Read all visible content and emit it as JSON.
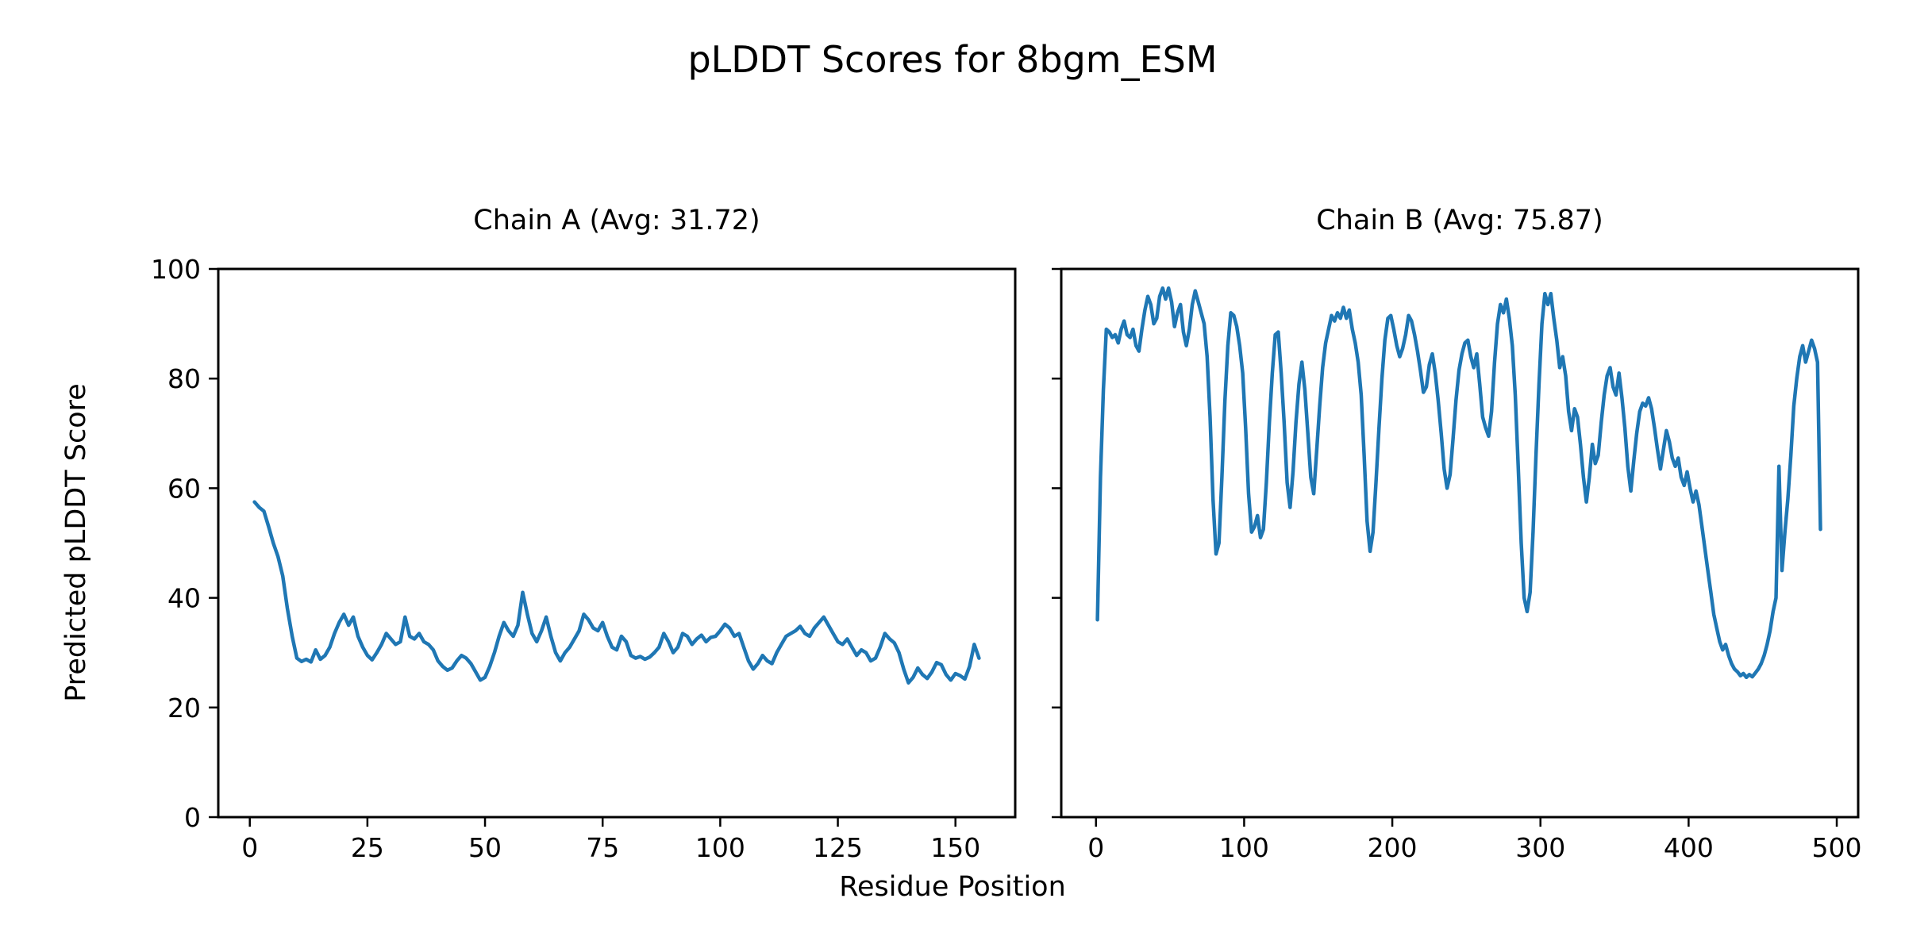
{
  "figure": {
    "suptitle": "pLDDT Scores for 8bgm_ESM",
    "xlabel": "Residue Position",
    "ylabel": "Predicted pLDDT Score",
    "background": "#ffffff",
    "spine_color": "#000000",
    "line_color": "#1f77b4"
  },
  "chart_data": [
    {
      "type": "line",
      "title": "Chain A (Avg: 31.72)",
      "avg": 31.72,
      "xlabel": "Residue Position",
      "ylabel": "Predicted pLDDT Score",
      "xlim": [
        -6.7,
        162.7
      ],
      "ylim": [
        0,
        100
      ],
      "xticks": [
        0,
        25,
        50,
        75,
        100,
        125,
        150
      ],
      "yticks": [
        0,
        20,
        40,
        60,
        80,
        100
      ],
      "show_ytick_labels": true,
      "grid": false,
      "legend": "none",
      "series": [
        {
          "name": "Chain A pLDDT",
          "color": "#1f77b4",
          "x_start": 1,
          "x_step": 1,
          "values": [
            57.5,
            56.5,
            55.8,
            53,
            50,
            47.5,
            44,
            38,
            33,
            29,
            28.4,
            28.8,
            28.3,
            30.5,
            28.8,
            29.5,
            31,
            33.5,
            35.5,
            37,
            35,
            36.5,
            33,
            31,
            29.5,
            28.7,
            30,
            31.5,
            33.5,
            32.5,
            31.5,
            32,
            36.5,
            33,
            32.5,
            33.5,
            32,
            31.5,
            30.5,
            28.5,
            27.5,
            26.8,
            27.2,
            28.5,
            29.5,
            29,
            28,
            26.5,
            25,
            25.5,
            27.5,
            30,
            33,
            35.5,
            34,
            33,
            35,
            41,
            37,
            33.5,
            32,
            34,
            36.5,
            33,
            30,
            28.5,
            30,
            31,
            32.5,
            34,
            37,
            36,
            34.5,
            34,
            35.5,
            33,
            31,
            30.5,
            33,
            32,
            29.5,
            29,
            29.3,
            28.8,
            29.2,
            30,
            31,
            33.5,
            32,
            30,
            31,
            33.5,
            33,
            31.5,
            32.5,
            33.2,
            32,
            32.8,
            33,
            34,
            35.2,
            34.5,
            33,
            33.5,
            31,
            28.5,
            27,
            28,
            29.5,
            28.5,
            28,
            30,
            31.5,
            33,
            33.5,
            34,
            34.8,
            33.5,
            33,
            34.5,
            35.5,
            36.5,
            35,
            33.5,
            32,
            31.5,
            32.5,
            31,
            29.5,
            30.5,
            30,
            28.5,
            29,
            31,
            33.5,
            32.5,
            31.8,
            30,
            27,
            24.5,
            25.5,
            27.2,
            26,
            25.3,
            26.5,
            28.2,
            27.8,
            26,
            25,
            26.2,
            25.8,
            25.2,
            27.5,
            31.5,
            29
          ]
        }
      ]
    },
    {
      "type": "line",
      "title": "Chain B (Avg: 75.87)",
      "avg": 75.87,
      "xlabel": "Residue Position",
      "ylabel": "Predicted pLDDT Score",
      "xlim": [
        -23.45,
        514.45
      ],
      "ylim": [
        0,
        100
      ],
      "xticks": [
        0,
        100,
        200,
        300,
        400,
        500
      ],
      "yticks": [
        0,
        20,
        40,
        60,
        80,
        100
      ],
      "show_ytick_labels": false,
      "grid": false,
      "legend": "none",
      "series": [
        {
          "name": "Chain B pLDDT",
          "color": "#1f77b4",
          "x_start": 1,
          "x_step": 2,
          "values": [
            36,
            62,
            78,
            89,
            88.5,
            87.5,
            88,
            86.5,
            89,
            90.5,
            88,
            87.5,
            89,
            86,
            85,
            89,
            92.5,
            95,
            93.5,
            90,
            91,
            95,
            96.5,
            94.5,
            96.5,
            94,
            89.5,
            92,
            93.5,
            88.5,
            86,
            89,
            93.5,
            96,
            94,
            92,
            90,
            84,
            73,
            58,
            48,
            50,
            62,
            76,
            86,
            92,
            91.5,
            89.5,
            86,
            81,
            71,
            59,
            52,
            53,
            55,
            51,
            52.5,
            61,
            72,
            81,
            88,
            88.5,
            81,
            72,
            61,
            56.5,
            63,
            72,
            79,
            83,
            78,
            70,
            62,
            59,
            67,
            75,
            82,
            86.5,
            89,
            91.5,
            90.5,
            92,
            91,
            93,
            91,
            92.5,
            89,
            86.5,
            83,
            77,
            66,
            54,
            48.5,
            52,
            61,
            71,
            80,
            87,
            91,
            91.5,
            89,
            86,
            84,
            85.5,
            88,
            91.5,
            90.5,
            88,
            85,
            81.5,
            77.5,
            78.5,
            82.5,
            84.5,
            81,
            76,
            70,
            63.5,
            60,
            62.5,
            69,
            76,
            81.5,
            84.5,
            86.5,
            87,
            84,
            82,
            84.5,
            79,
            73,
            71,
            69.5,
            74,
            83,
            90,
            93.5,
            92,
            94.5,
            91,
            86,
            77,
            64,
            50,
            40,
            37.5,
            41,
            52,
            66,
            79,
            90,
            95.5,
            93.5,
            95.5,
            91,
            87,
            82,
            84,
            80.5,
            74,
            70.5,
            74.5,
            73,
            68,
            62,
            57.5,
            62,
            68,
            64.5,
            66,
            72,
            77,
            80.5,
            82,
            78.5,
            77,
            81,
            76.5,
            71,
            64,
            59.5,
            65,
            70,
            74,
            75.5,
            75,
            76.5,
            74.5,
            71,
            67,
            63.5,
            67,
            70.5,
            68.5,
            65.5,
            64,
            65.5,
            62,
            60.5,
            63,
            60,
            57.5,
            59.5,
            57,
            53,
            49,
            45,
            41,
            37,
            34.5,
            32,
            30.5,
            31.5,
            29.5,
            28,
            27,
            26.5,
            25.8,
            26.2,
            25.5,
            26,
            25.6,
            26.3,
            27,
            28,
            29.5,
            31.5,
            34,
            37.5,
            40,
            64,
            45,
            52,
            58,
            66,
            75,
            80,
            84,
            86,
            83,
            85,
            87,
            85.5,
            83,
            52.5
          ]
        }
      ]
    }
  ]
}
